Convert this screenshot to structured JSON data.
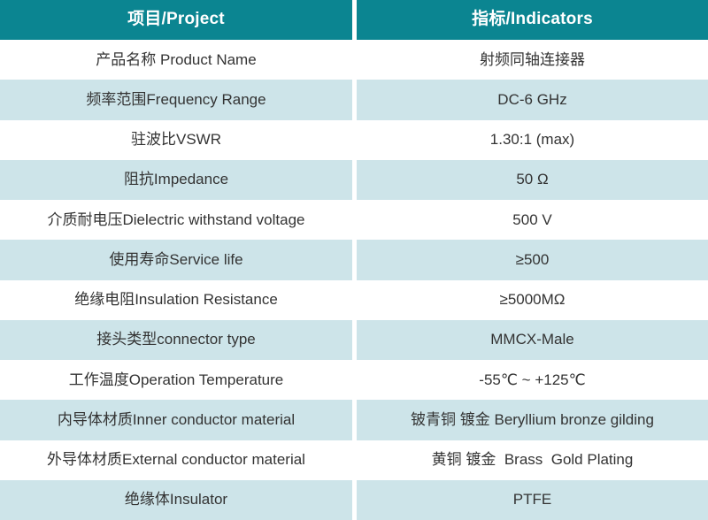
{
  "table": {
    "header": {
      "project_label": "项目/Project",
      "indicator_label": "指标/Indicators"
    },
    "rows": [
      {
        "project": "产品名称 Product Name",
        "indicator": "射频同轴连接器"
      },
      {
        "project": "频率范围Frequency Range",
        "indicator": "DC-6 GHz"
      },
      {
        "project": "驻波比VSWR",
        "indicator": "1.30:1 (max)"
      },
      {
        "project": "阻抗Impedance",
        "indicator": "50 Ω"
      },
      {
        "project": "介质耐电压Dielectric withstand voltage",
        "indicator": "500 V"
      },
      {
        "project": "使用寿命Service life",
        "indicator": "≥500"
      },
      {
        "project": "绝缘电阻Insulation Resistance",
        "indicator": "≥5000MΩ"
      },
      {
        "project": "接头类型connector type",
        "indicator": "MMCX-Male"
      },
      {
        "project": "工作温度Operation Temperature",
        "indicator": "-55℃ ~ +125℃"
      },
      {
        "project": "内导体材质Inner conductor material",
        "indicator": "铍青铜 镀金 Beryllium bronze gilding"
      },
      {
        "project": "外导体材质External conductor material",
        "indicator": "黄铜 镀金  Brass  Gold Plating"
      },
      {
        "project": "绝缘体Insulator",
        "indicator": "PTFE"
      }
    ],
    "colors": {
      "header_bg": "#0b8591",
      "header_text": "#ffffff",
      "row_tint_bg": "#cde4e9",
      "row_plain_bg": "#ffffff",
      "body_text": "#333333"
    }
  }
}
